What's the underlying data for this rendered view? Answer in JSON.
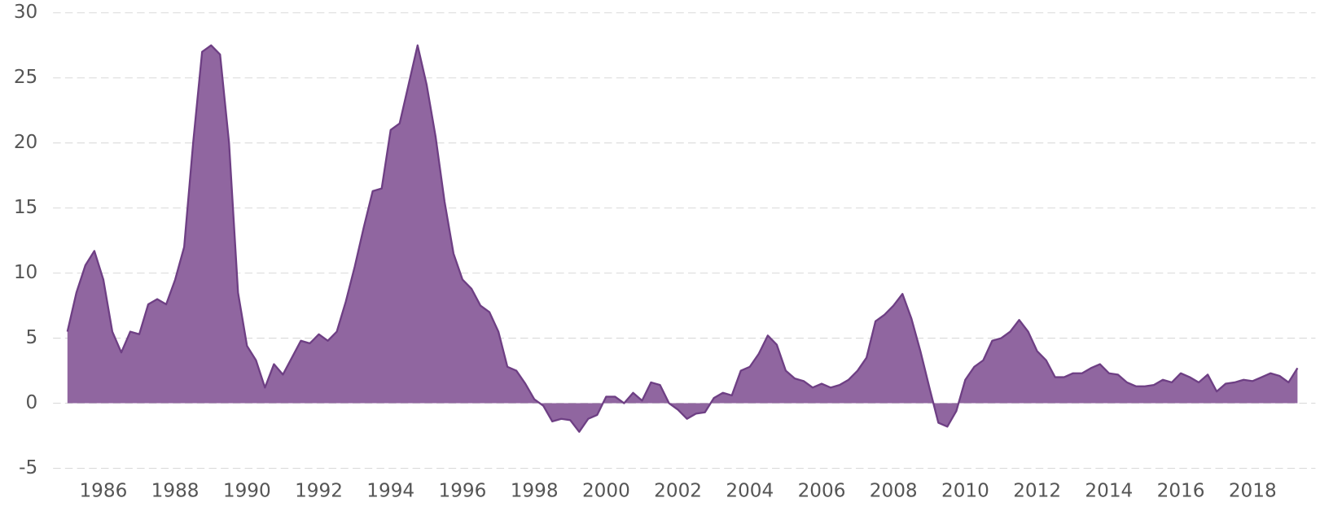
{
  "chart_data": {
    "type": "area",
    "x": [
      1985,
      1985.25,
      1985.5,
      1985.75,
      1986,
      1986.25,
      1986.5,
      1986.75,
      1987,
      1987.25,
      1987.5,
      1987.75,
      1988,
      1988.25,
      1988.5,
      1988.75,
      1989,
      1989.25,
      1989.5,
      1989.75,
      1990,
      1990.25,
      1990.5,
      1990.75,
      1991,
      1991.25,
      1991.5,
      1991.75,
      1992,
      1992.25,
      1992.5,
      1992.75,
      1993,
      1993.25,
      1993.5,
      1993.75,
      1994,
      1994.25,
      1994.5,
      1994.75,
      1995,
      1995.25,
      1995.5,
      1995.75,
      1996,
      1996.25,
      1996.5,
      1996.75,
      1997,
      1997.25,
      1997.5,
      1997.75,
      1998,
      1998.25,
      1998.5,
      1998.75,
      1999,
      1999.25,
      1999.5,
      1999.75,
      2000,
      2000.25,
      2000.5,
      2000.75,
      2001,
      2001.25,
      2001.5,
      2001.75,
      2002,
      2002.25,
      2002.5,
      2002.75,
      2003,
      2003.25,
      2003.5,
      2003.75,
      2004,
      2004.25,
      2004.5,
      2004.75,
      2005,
      2005.25,
      2005.5,
      2005.75,
      2006,
      2006.25,
      2006.5,
      2006.75,
      2007,
      2007.25,
      2007.5,
      2007.75,
      2008,
      2008.25,
      2008.5,
      2008.75,
      2009,
      2009.25,
      2009.5,
      2009.75,
      2010,
      2010.25,
      2010.5,
      2010.75,
      2011,
      2011.25,
      2011.5,
      2011.75,
      2012,
      2012.25,
      2012.5,
      2012.75,
      2013,
      2013.25,
      2013.5,
      2013.75,
      2014,
      2014.25,
      2014.5,
      2014.75,
      2015,
      2015.25,
      2015.5,
      2015.75,
      2016,
      2016.25,
      2016.5,
      2016.75,
      2017,
      2017.25,
      2017.5,
      2017.75,
      2018,
      2018.25,
      2018.5,
      2018.75,
      2019,
      2019.25
    ],
    "values": [
      5.5,
      8.5,
      10.6,
      11.7,
      9.5,
      5.5,
      3.9,
      5.5,
      5.3,
      7.6,
      8.0,
      7.6,
      9.5,
      12,
      20,
      27,
      27.5,
      26.8,
      20,
      8.5,
      4.4,
      3.3,
      1.2,
      3,
      2.2,
      3.5,
      4.8,
      4.6,
      5.3,
      4.8,
      5.5,
      7.8,
      10.5,
      13.5,
      16.3,
      16.5,
      21,
      21.5,
      24.5,
      27.5,
      24.5,
      20.5,
      15.5,
      11.5,
      9.5,
      8.8,
      7.5,
      7,
      5.5,
      2.8,
      2.5,
      1.5,
      0.3,
      -0.2,
      -1.4,
      -1.2,
      -1.3,
      -2.2,
      -1.2,
      -0.9,
      0.5,
      0.5,
      0,
      0.8,
      0.2,
      1.6,
      1.4,
      0,
      -0.5,
      -1.2,
      -0.8,
      -0.7,
      0.4,
      0.8,
      0.6,
      2.5,
      2.8,
      3.8,
      5.2,
      4.5,
      2.5,
      1.9,
      1.7,
      1.2,
      1.5,
      1.2,
      1.4,
      1.8,
      2.5,
      3.5,
      6.3,
      6.8,
      7.5,
      8.4,
      6.5,
      4,
      1.2,
      -1.5,
      -1.8,
      -0.6,
      1.8,
      2.8,
      3.3,
      4.8,
      5.0,
      5.5,
      6.4,
      5.5,
      4.0,
      3.3,
      2.0,
      2.0,
      2.3,
      2.3,
      2.7,
      3.0,
      2.3,
      2.2,
      1.6,
      1.3,
      1.3,
      1.4,
      1.8,
      1.6,
      2.3,
      2.0,
      1.6,
      2.2,
      0.9,
      1.5,
      1.6,
      1.8,
      1.7,
      2.0,
      2.3,
      2.1,
      1.6,
      2.7
    ],
    "color": "#9066a0",
    "line_color": "#6e3f84",
    "xlim": [
      1984.6,
      2019.75
    ],
    "xticks": [
      1986,
      1988,
      1990,
      1992,
      1994,
      1996,
      1998,
      2000,
      2002,
      2004,
      2006,
      2008,
      2010,
      2012,
      2014,
      2016,
      2018
    ],
    "ylim": [
      -5,
      30
    ],
    "yticks": [
      -5,
      0,
      5,
      10,
      15,
      20,
      25,
      30
    ],
    "grid": true
  }
}
